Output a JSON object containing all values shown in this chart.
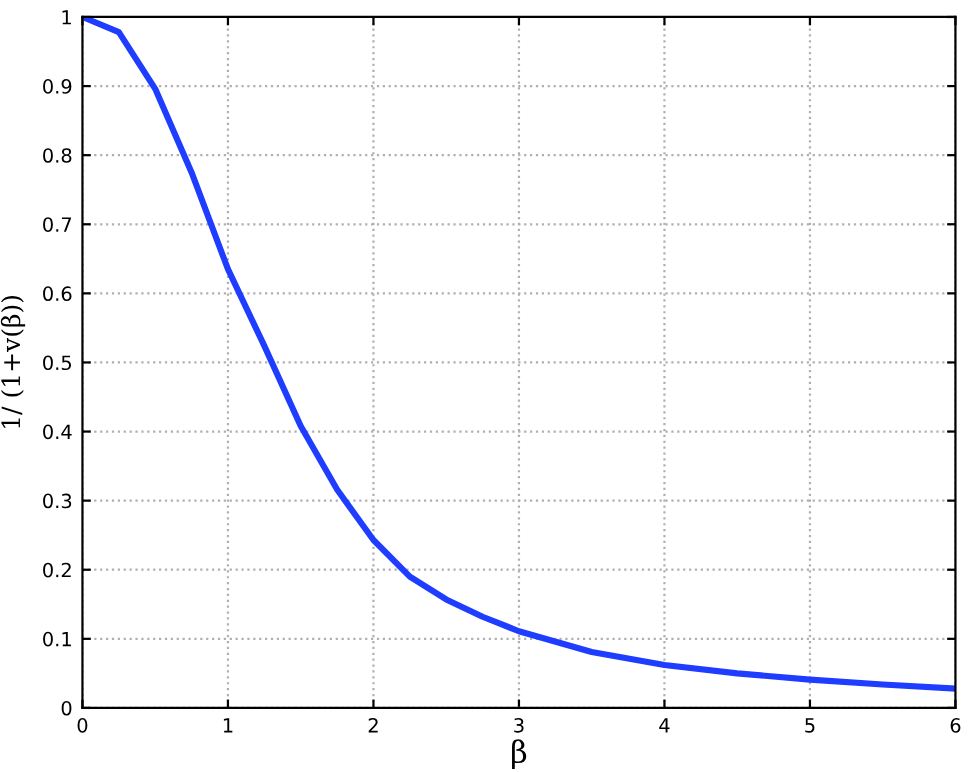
{
  "chart_data": {
    "type": "line",
    "xlabel": "β",
    "ylabel": "1/ (1+v(β))",
    "x": [
      0,
      0.25,
      0.5,
      0.75,
      1,
      1.25,
      1.5,
      1.75,
      2,
      2.25,
      2.5,
      2.75,
      3,
      3.5,
      4,
      4.5,
      5,
      5.5,
      6
    ],
    "series": [
      {
        "color": "#1f3dff",
        "values": [
          1.0,
          0.978,
          0.896,
          0.775,
          0.635,
          0.524,
          0.408,
          0.316,
          0.243,
          0.19,
          0.157,
          0.132,
          0.111,
          0.081,
          0.062,
          0.05,
          0.041,
          0.034,
          0.028
        ]
      }
    ],
    "xlim": [
      0,
      6
    ],
    "ylim": [
      0,
      1
    ],
    "xticks": [
      0,
      1,
      2,
      3,
      4,
      5,
      6
    ],
    "yticks": [
      0,
      0.1,
      0.2,
      0.3,
      0.4,
      0.5,
      0.6,
      0.7,
      0.8,
      0.9,
      1
    ],
    "grid": true,
    "line_style": "solid",
    "marker": "none",
    "legend": false
  }
}
